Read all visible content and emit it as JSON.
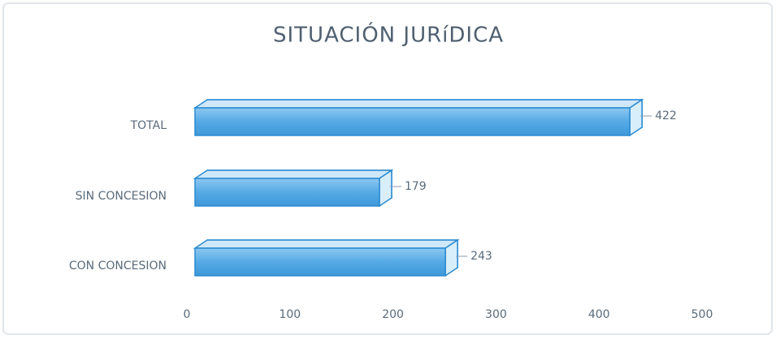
{
  "chart_data": {
    "type": "bar3d_horizontal",
    "title": "SITUACIÓN JURíDICA",
    "categories": [
      "TOTAL",
      "SIN CONCESION",
      "CON CONCESION"
    ],
    "values": [
      422,
      179,
      243
    ],
    "color": "#55aae6",
    "xlim": [
      0,
      500
    ],
    "xticks": [
      0,
      100,
      200,
      300,
      400,
      500
    ]
  }
}
